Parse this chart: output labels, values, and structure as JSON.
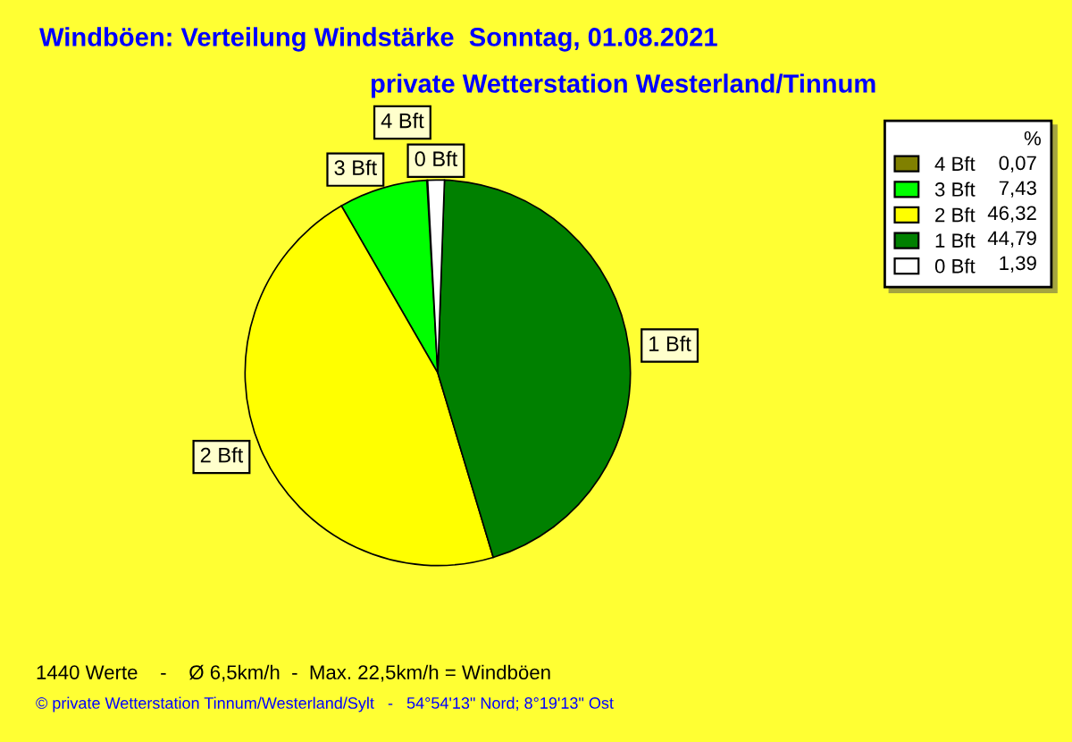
{
  "chart_data": {
    "type": "pie",
    "title": "Windböen: Verteilung Windstärke  Sonntag, 01.08.2021",
    "subtitle": "private Wetterstation Westerland/Tinnum",
    "categories": [
      "4 Bft",
      "3 Bft",
      "2 Bft",
      "1 Bft",
      "0 Bft"
    ],
    "values": [
      0.07,
      7.43,
      46.32,
      44.79,
      1.39
    ],
    "value_labels": [
      "0,07",
      "7,43",
      "46,32",
      "44,79",
      "1,39"
    ],
    "colors": [
      "#808000",
      "#00ff00",
      "#ffff00",
      "#008000",
      "#ffffff"
    ],
    "legend_title": "%",
    "legend": "top right",
    "annotations": [
      "1440 Werte    -    Ø 6,5km/h  -  Max. 22,5km/h = Windböen",
      "© private Wetterstation Tinnum/Westerland/Sylt   -   54°54'13\" Nord; 8°19'13\" Ost"
    ]
  }
}
